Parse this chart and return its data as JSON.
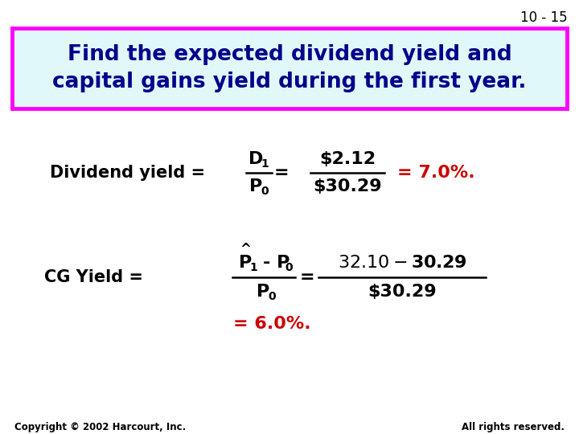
{
  "slide_number": "10 - 15",
  "title_line1": "Find the expected dividend yield and",
  "title_line2": "capital gains yield during the first year.",
  "title_bg": "#e0f8f8",
  "title_border": "#ff00ff",
  "title_text_color": "#00008B",
  "body_text_color": "#000000",
  "red_text_color": "#cc0000",
  "div_num": "$2.12",
  "div_den": "$30.29",
  "cg_rhs_num": "$32.10 - $30.29",
  "cg_rhs_den": "$30.29",
  "copyright": "Copyright © 2002 Harcourt, Inc.",
  "rights": "All rights reserved.",
  "bg_color": "#ffffff",
  "fig_w": 7.2,
  "fig_h": 5.4,
  "dpi": 100
}
